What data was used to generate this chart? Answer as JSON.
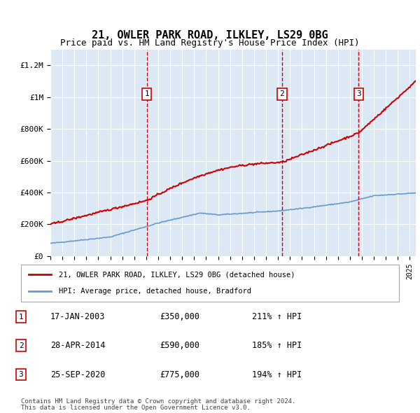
{
  "title": "21, OWLER PARK ROAD, ILKLEY, LS29 0BG",
  "subtitle": "Price paid vs. HM Land Registry's House Price Index (HPI)",
  "legend_line1": "21, OWLER PARK ROAD, ILKLEY, LS29 0BG (detached house)",
  "legend_line2": "HPI: Average price, detached house, Bradford",
  "footer1": "Contains HM Land Registry data © Crown copyright and database right 2024.",
  "footer2": "This data is licensed under the Open Government Licence v3.0.",
  "table": [
    {
      "num": "1",
      "date": "17-JAN-2003",
      "price": "£350,000",
      "hpi": "211% ↑ HPI"
    },
    {
      "num": "2",
      "date": "28-APR-2014",
      "price": "£590,000",
      "hpi": "185% ↑ HPI"
    },
    {
      "num": "3",
      "date": "25-SEP-2020",
      "price": "£775,000",
      "hpi": "194% ↑ HPI"
    }
  ],
  "sale_dates": [
    2003.04,
    2014.33,
    2020.73
  ],
  "sale_prices": [
    350000,
    590000,
    775000
  ],
  "ylim": [
    0,
    1300000
  ],
  "xlim_start": 1995.0,
  "xlim_end": 2025.5,
  "background_color": "#dce9f5",
  "plot_bg": "#dce9f5",
  "red_line_color": "#cc0000",
  "blue_line_color": "#6699cc",
  "grid_color": "#ffffff",
  "dashed_line_color": "#cc0000",
  "marker_border_color": "#cc0000",
  "marker_fill_color": "#ffffff"
}
